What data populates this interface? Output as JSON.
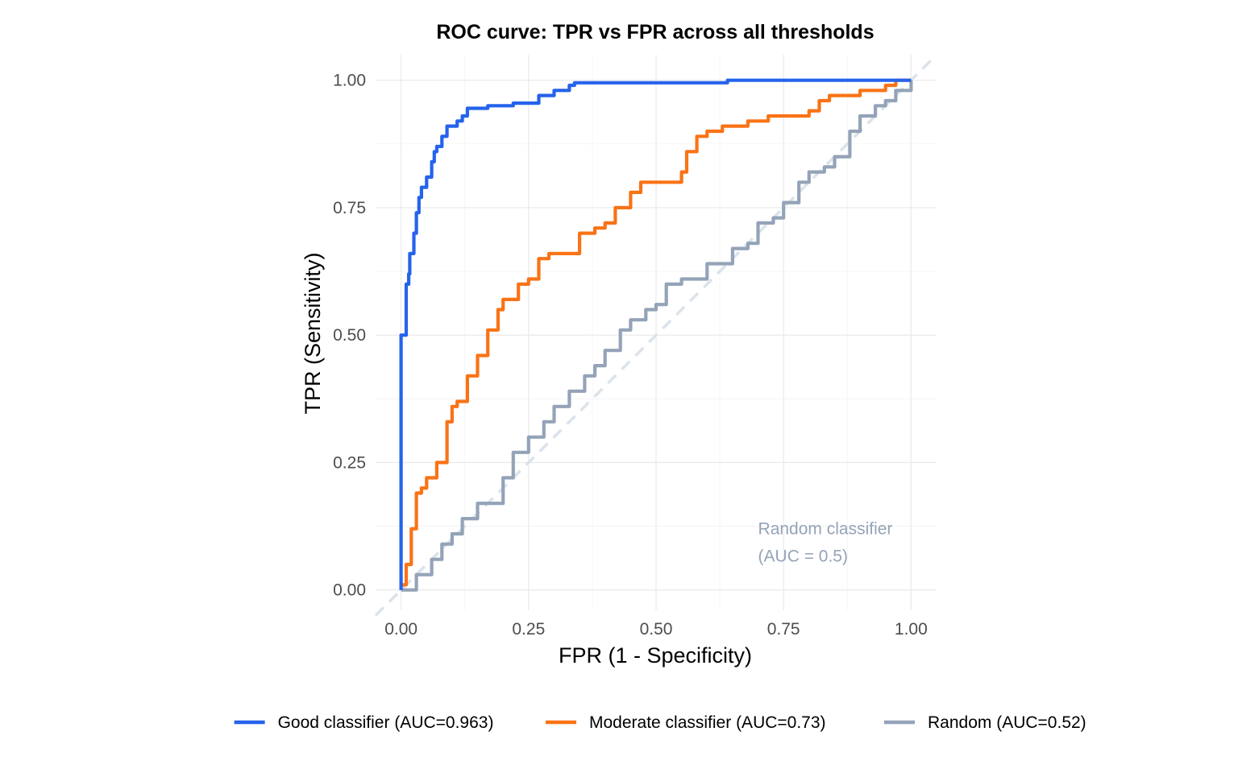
{
  "chart_data": {
    "type": "line",
    "title": "ROC curve: TPR vs FPR across all thresholds",
    "xlabel": "FPR (1 - Specificity)",
    "ylabel": "TPR (Sensitivity)",
    "xlim": [
      -0.05,
      1.05
    ],
    "ylim": [
      -0.04,
      1.05
    ],
    "xticks": [
      0,
      0.25,
      0.5,
      0.75,
      1
    ],
    "yticks": [
      0,
      0.25,
      0.5,
      0.75,
      1
    ],
    "xtick_labels": [
      "0.00",
      "0.25",
      "0.50",
      "0.75",
      "1.00"
    ],
    "ytick_labels": [
      "0.00",
      "0.25",
      "0.50",
      "0.75",
      "1.00"
    ],
    "grid": true,
    "legend_position": "bottom",
    "reference_line": {
      "x": [
        -0.05,
        1.04
      ],
      "y": [
        -0.05,
        1.04
      ],
      "style": "dashed",
      "color": "#dbe2ea"
    },
    "annotation": {
      "lines": [
        "Random classifier",
        "(AUC = 0.5)"
      ],
      "x": 0.7,
      "y": 0.12,
      "color": "#94a3b8"
    },
    "series": [
      {
        "name": "Good classifier (AUC=0.963)",
        "color": "#2563eb",
        "x": [
          0,
          0,
          0.01,
          0.01,
          0.015,
          0.017,
          0.025,
          0.03,
          0.035,
          0.04,
          0.05,
          0.06,
          0.065,
          0.07,
          0.08,
          0.09,
          0.11,
          0.12,
          0.13,
          0.17,
          0.22,
          0.27,
          0.3,
          0.33,
          0.34,
          0.5,
          0.64,
          0.8,
          0.97,
          1.0
        ],
        "y": [
          0,
          0.5,
          0.5,
          0.6,
          0.62,
          0.66,
          0.7,
          0.74,
          0.77,
          0.79,
          0.81,
          0.84,
          0.86,
          0.87,
          0.89,
          0.91,
          0.92,
          0.93,
          0.945,
          0.95,
          0.955,
          0.97,
          0.98,
          0.99,
          0.995,
          0.995,
          1.0,
          1.0,
          1.0,
          1.0
        ]
      },
      {
        "name": "Moderate classifier (AUC=0.73)",
        "color": "#f97316",
        "x": [
          0,
          0.01,
          0.02,
          0.03,
          0.04,
          0.05,
          0.07,
          0.09,
          0.1,
          0.11,
          0.13,
          0.15,
          0.17,
          0.19,
          0.2,
          0.23,
          0.25,
          0.27,
          0.29,
          0.31,
          0.35,
          0.38,
          0.4,
          0.42,
          0.45,
          0.47,
          0.5,
          0.55,
          0.56,
          0.58,
          0.6,
          0.63,
          0.68,
          0.72,
          0.78,
          0.8,
          0.82,
          0.84,
          0.87,
          0.9,
          0.95,
          0.97,
          1.0
        ],
        "y": [
          0.01,
          0.05,
          0.12,
          0.19,
          0.2,
          0.22,
          0.25,
          0.33,
          0.36,
          0.37,
          0.42,
          0.46,
          0.51,
          0.55,
          0.57,
          0.6,
          0.61,
          0.65,
          0.66,
          0.66,
          0.7,
          0.71,
          0.72,
          0.75,
          0.78,
          0.8,
          0.8,
          0.82,
          0.86,
          0.89,
          0.9,
          0.91,
          0.92,
          0.93,
          0.93,
          0.94,
          0.96,
          0.97,
          0.97,
          0.98,
          0.99,
          1.0,
          1.0
        ]
      },
      {
        "name": "Random (AUC=0.52)",
        "color": "#94a3b8",
        "x": [
          0,
          0.03,
          0.06,
          0.08,
          0.1,
          0.12,
          0.15,
          0.2,
          0.22,
          0.25,
          0.28,
          0.3,
          0.33,
          0.36,
          0.38,
          0.4,
          0.43,
          0.45,
          0.48,
          0.5,
          0.52,
          0.55,
          0.6,
          0.65,
          0.68,
          0.7,
          0.73,
          0.75,
          0.78,
          0.8,
          0.83,
          0.85,
          0.88,
          0.9,
          0.93,
          0.95,
          0.97,
          1.0
        ],
        "y": [
          0,
          0.03,
          0.06,
          0.09,
          0.11,
          0.14,
          0.17,
          0.22,
          0.27,
          0.3,
          0.33,
          0.36,
          0.39,
          0.42,
          0.44,
          0.47,
          0.51,
          0.53,
          0.55,
          0.56,
          0.6,
          0.61,
          0.64,
          0.67,
          0.68,
          0.72,
          0.73,
          0.76,
          0.8,
          0.82,
          0.83,
          0.85,
          0.9,
          0.93,
          0.95,
          0.96,
          0.98,
          1.0
        ]
      }
    ]
  }
}
